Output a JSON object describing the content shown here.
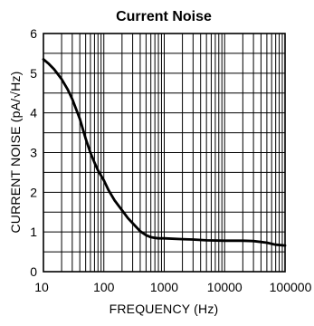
{
  "chart_data": {
    "type": "line",
    "title": "Current Noise",
    "xlabel": "FREQUENCY (Hz)",
    "ylabel": "CURRENT NOISE (pA/√Hz)",
    "x_scale": "log",
    "xlim": [
      10,
      100000
    ],
    "ylim": [
      0,
      6
    ],
    "grid": true,
    "x_ticks": [
      "10",
      "100",
      "1000",
      "10000",
      "100000"
    ],
    "y_ticks": [
      "0",
      "1",
      "2",
      "3",
      "4",
      "5",
      "6"
    ],
    "series": [
      {
        "x": [
          10,
          12,
          15,
          20,
          25,
          30,
          40,
          50,
          60,
          70,
          80,
          100,
          120,
          150,
          200,
          250,
          300,
          400,
          500,
          600,
          700,
          800,
          1000,
          2000,
          3000,
          5000,
          10000,
          20000,
          30000,
          50000,
          70000,
          100000
        ],
        "y": [
          5.35,
          5.25,
          5.1,
          4.85,
          4.6,
          4.35,
          3.85,
          3.35,
          3.0,
          2.75,
          2.55,
          2.3,
          2.05,
          1.8,
          1.55,
          1.35,
          1.22,
          1.02,
          0.92,
          0.87,
          0.85,
          0.84,
          0.84,
          0.82,
          0.81,
          0.79,
          0.78,
          0.78,
          0.77,
          0.73,
          0.68,
          0.66
        ]
      }
    ]
  }
}
